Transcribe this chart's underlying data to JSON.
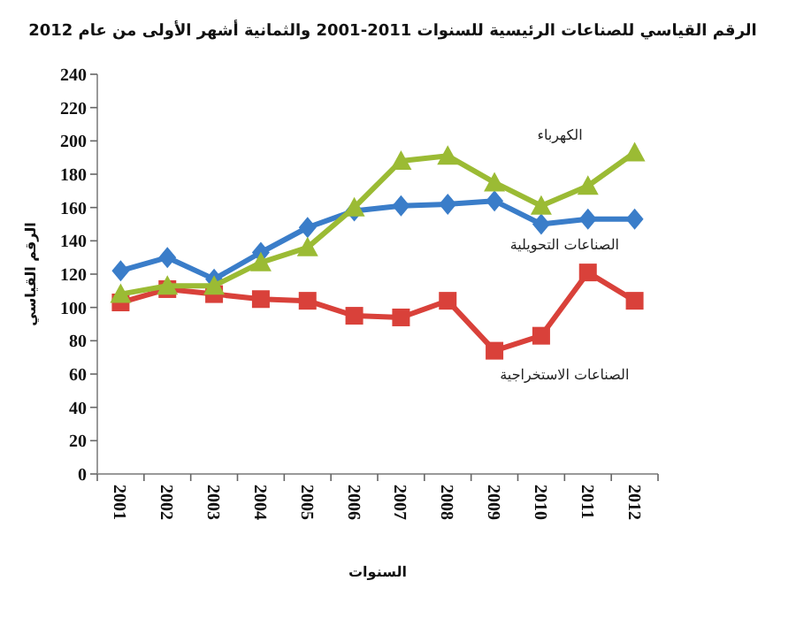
{
  "chart_data": {
    "type": "line",
    "title": "الرقم القياسي للصناعات الرئيسية للسنوات 2011-2001 والثمانية أشهر الأولى من عام 2012",
    "xlabel": "السنوات",
    "ylabel": "الرقم القياسي",
    "categories": [
      "2001",
      "2002",
      "2003",
      "2004",
      "2005",
      "2006",
      "2007",
      "2008",
      "2009",
      "2010",
      "2011",
      "2012"
    ],
    "ylim": [
      0,
      240
    ],
    "yticks": [
      0,
      20,
      40,
      60,
      80,
      100,
      120,
      140,
      160,
      180,
      200,
      220,
      240
    ],
    "series": [
      {
        "name": "الكهرباء",
        "color": "#9bbb34",
        "marker": "triangle",
        "values": [
          108,
          113,
          113,
          127,
          136,
          160,
          188,
          191,
          175,
          161,
          173,
          193
        ]
      },
      {
        "name": "الصناعات التحويلية",
        "color": "#3a7dc9",
        "marker": "diamond",
        "values": [
          122,
          130,
          117,
          133,
          148,
          158,
          161,
          162,
          164,
          150,
          153,
          153
        ]
      },
      {
        "name": "الصناعات الاستخراجية",
        "color": "#d9413a",
        "marker": "square",
        "values": [
          103,
          111,
          108,
          105,
          104,
          95,
          94,
          104,
          74,
          83,
          121,
          104
        ]
      }
    ]
  }
}
